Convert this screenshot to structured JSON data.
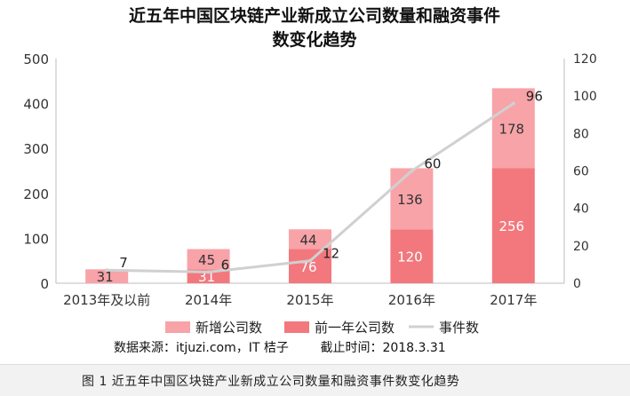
{
  "chart_data": {
    "type": "bar",
    "title_line1": "近五年中国区块链产业新成立公司数量和融资事件",
    "title_line2": "数变化趋势",
    "categories": [
      "2013年及以前",
      "2014年",
      "2015年",
      "2016年",
      "2017年"
    ],
    "series": [
      {
        "name": "新增公司数",
        "kind": "bar-stacked-top",
        "color": "#f7a3a8",
        "values": [
          31,
          45,
          44,
          136,
          178
        ]
      },
      {
        "name": "前一年公司数",
        "kind": "bar-stacked-bottom",
        "color": "#f2787e",
        "values": [
          0,
          31,
          76,
          120,
          256
        ]
      },
      {
        "name": "事件数",
        "kind": "line",
        "axis": "right",
        "color": "#d0d0d0",
        "values": [
          7,
          6,
          12,
          60,
          96
        ]
      }
    ],
    "bar_labels": {
      "top": [
        "31",
        "45",
        "44",
        "136",
        "178"
      ],
      "bottom": [
        "",
        "31",
        "76",
        "120",
        "256"
      ]
    },
    "line_labels": [
      "7",
      "6",
      "12",
      "60",
      "96"
    ],
    "y_left": {
      "ticks": [
        "0",
        "100",
        "200",
        "300",
        "400",
        "500"
      ],
      "range": [
        0,
        500
      ]
    },
    "y_right": {
      "ticks": [
        "0",
        "20",
        "40",
        "60",
        "80",
        "100",
        "120"
      ],
      "range": [
        0,
        120
      ]
    },
    "legend_position": "bottom",
    "grid": false
  },
  "source_text": "数据来源：itjuzi.com，IT 桔子        截止时间：2018.3.31",
  "figure_caption": "图 1    近五年中国区块链产业新成立公司数量和融资事件数变化趋势"
}
